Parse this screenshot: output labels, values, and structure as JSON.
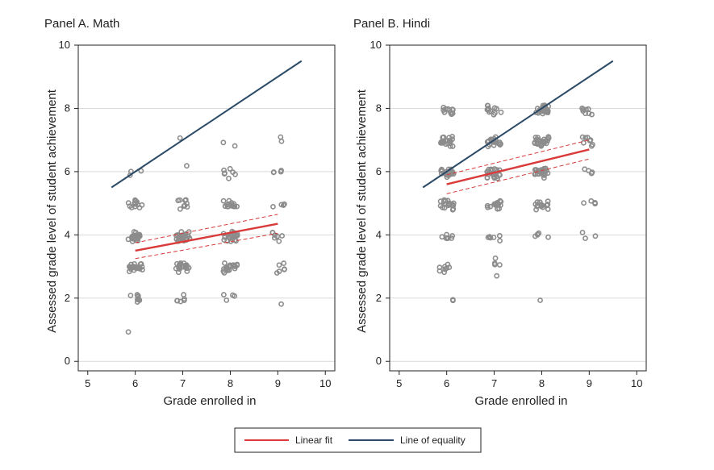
{
  "colors": {
    "points": "#8c8c8c",
    "linear_fit": "#d93a3a",
    "equality": "#2a4a66",
    "grid": "#d9d9d9",
    "frame": "#222222"
  },
  "legend": {
    "linear_fit_label": "Linear fit",
    "equality_label": "Line of equality"
  },
  "chart_data": [
    {
      "type": "scatter",
      "title": "Panel A. Math",
      "xlabel": "Grade enrolled in",
      "ylabel": "Assessed grade level of student achievement",
      "xlim": [
        4.8,
        10.2
      ],
      "ylim": [
        -0.3,
        10
      ],
      "xticks": [
        "5",
        "6",
        "7",
        "8",
        "9",
        "10"
      ],
      "yticks": [
        "0",
        "2",
        "4",
        "6",
        "8",
        "10"
      ],
      "grid": "horizontal",
      "counts": {
        "6": {
          "0.9": 1,
          "1.9": 1,
          "2": 7,
          "2.9": 12,
          "3": 14,
          "3.9": 14,
          "4": 14,
          "4.9": 6,
          "5": 6,
          "5.8": 1,
          "6": 2
        },
        "7": {
          "1.9": 1,
          "2": 4,
          "2.2": 1,
          "2.9": 10,
          "3": 14,
          "3.9": 12,
          "4": 14,
          "4.9": 4,
          "5": 5,
          "6.2": 1,
          "7": 1
        },
        "8": {
          "2": 4,
          "2.9": 8,
          "3": 12,
          "3.9": 12,
          "4": 14,
          "4.9": 7,
          "5": 8,
          "5.8": 1,
          "6": 6,
          "6.8": 1,
          "7": 1
        },
        "9": {
          "1.9": 1,
          "2.9": 3,
          "3": 3,
          "3.9": 3,
          "4": 4,
          "5": 4,
          "6": 4,
          "7": 2
        }
      },
      "linear_fit": {
        "x": [
          6,
          9
        ],
        "y": [
          3.5,
          4.35
        ],
        "ci_low": [
          3.25,
          4.05
        ],
        "ci_high": [
          3.75,
          4.65
        ]
      },
      "equality": {
        "x": [
          5.5,
          9.5
        ],
        "y": [
          5.5,
          9.5
        ]
      }
    },
    {
      "type": "scatter",
      "title": "Panel B. Hindi",
      "xlabel": "Grade enrolled in",
      "ylabel": "Assessed grade level of student achievement",
      "xlim": [
        4.8,
        10.2
      ],
      "ylim": [
        -0.3,
        10
      ],
      "xticks": [
        "5",
        "6",
        "7",
        "8",
        "9",
        "10"
      ],
      "yticks": [
        "0",
        "2",
        "4",
        "6",
        "8",
        "10"
      ],
      "grid": "horizontal",
      "counts": {
        "6": {
          "1.9": 1,
          "2": 1,
          "2.9": 4,
          "3": 4,
          "3.9": 4,
          "4": 3,
          "4.9": 10,
          "5": 10,
          "5.9": 8,
          "6": 10,
          "6.9": 10,
          "7": 10,
          "7.9": 6,
          "8": 6
        },
        "7": {
          "2.8": 1,
          "3": 3,
          "3.2": 1,
          "3.9": 3,
          "4": 3,
          "4.9": 8,
          "5": 10,
          "5.9": 10,
          "6": 12,
          "6.9": 10,
          "7": 10,
          "7.9": 6,
          "8": 6
        },
        "8": {
          "1.9": 1,
          "3.9": 3,
          "4": 2,
          "4.9": 6,
          "5": 8,
          "5.9": 10,
          "6": 14,
          "6.9": 12,
          "7": 14,
          "7.9": 12,
          "8": 14
        },
        "9": {
          "4": 3,
          "5": 4,
          "6": 4,
          "6.9": 4,
          "7": 4,
          "7.9": 4,
          "8": 4
        }
      },
      "linear_fit": {
        "x": [
          6,
          9
        ],
        "y": [
          5.6,
          6.7
        ],
        "ci_low": [
          5.3,
          6.4
        ],
        "ci_high": [
          5.9,
          7.0
        ]
      },
      "equality": {
        "x": [
          5.5,
          9.5
        ],
        "y": [
          5.5,
          9.5
        ]
      }
    }
  ]
}
